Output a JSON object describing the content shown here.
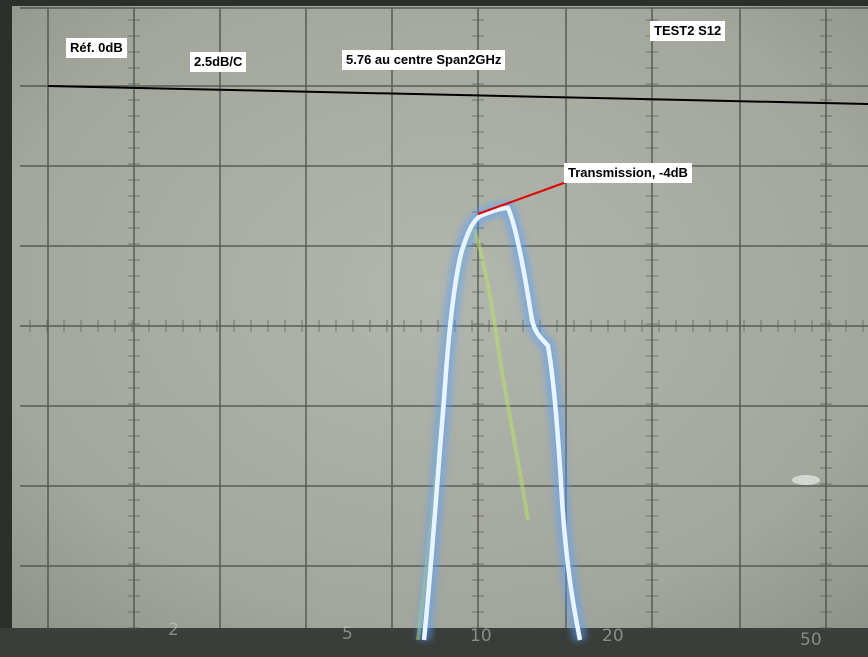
{
  "annotations": {
    "ref_level": "Réf. 0dB",
    "scale": "2.5dB/C",
    "center_span": "5.76 au centre Span2GHz",
    "test_id": "TEST2 S12",
    "transmission": "Transmission, -4dB"
  },
  "axis_marks": {
    "m1": "2",
    "m2": "5",
    "m3": "10",
    "m4": "20",
    "m5": "50"
  },
  "colors": {
    "screen": "#a8aca2",
    "graticule": "#3f423e",
    "trace": "#e8f4ff",
    "trace_glow": "#5aa0ff",
    "ghost_trace": "#b8e06a",
    "reference_line": "#000000",
    "annotation_pointer": "#e00000"
  }
}
